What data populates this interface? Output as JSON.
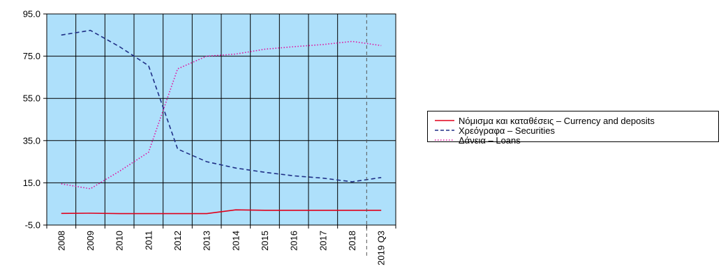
{
  "chart_data": {
    "type": "line",
    "categories": [
      "2008",
      "2009",
      "2010",
      "2011",
      "2012",
      "2013",
      "2014",
      "2015",
      "2016",
      "2017",
      "2018",
      "2019 Q3"
    ],
    "ylim": [
      -5.0,
      95.0
    ],
    "yticks": [
      "-5.0",
      "15.0",
      "35.0",
      "55.0",
      "75.0",
      "95.0"
    ],
    "grid": true,
    "background_color": "#aee0fb",
    "legend_position": "right",
    "series": [
      {
        "name": "Νόμισμα και καταθέσεις – Currency and deposits",
        "color": "#e0001b",
        "style": "solid",
        "values": [
          0.5,
          0.6,
          0.4,
          0.4,
          0.4,
          0.4,
          2.2,
          2.0,
          2.0,
          2.0,
          2.0,
          2.0
        ]
      },
      {
        "name": "Χρεόγραφα – Securities",
        "color": "#1f2f86",
        "style": "dashed",
        "values": [
          85.0,
          87.2,
          79.5,
          70.5,
          31.0,
          25.0,
          22.0,
          20.0,
          18.3,
          17.2,
          15.5,
          17.5
        ]
      },
      {
        "name": "Δάνεια – Loans",
        "color": "#e0109e",
        "style": "dotted",
        "values": [
          14.5,
          12.2,
          20.5,
          29.5,
          69.0,
          75.0,
          76.0,
          78.3,
          79.5,
          80.5,
          82.0,
          80.0
        ]
      }
    ],
    "annotation": {
      "type": "vertical-dashed-line",
      "between": [
        "2018",
        "2019 Q3"
      ]
    }
  }
}
